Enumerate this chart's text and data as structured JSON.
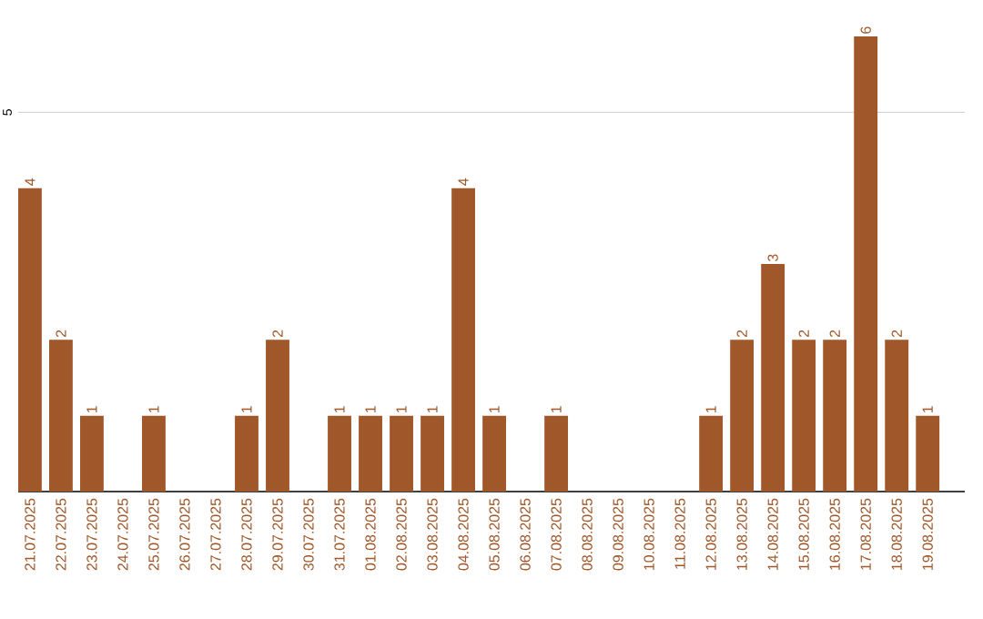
{
  "chart_data": {
    "type": "bar",
    "color": "#a0572a",
    "categories": [
      "21.07.2025",
      "22.07.2025",
      "23.07.2025",
      "24.07.2025",
      "25.07.2025",
      "26.07.2025",
      "27.07.2025",
      "28.07.2025",
      "29.07.2025",
      "30.07.2025",
      "31.07.2025",
      "01.08.2025",
      "02.08.2025",
      "03.08.2025",
      "04.08.2025",
      "05.08.2025",
      "06.08.2025",
      "07.08.2025",
      "08.08.2025",
      "09.08.2025",
      "10.08.2025",
      "11.08.2025",
      "12.08.2025",
      "13.08.2025",
      "14.08.2025",
      "15.08.2025",
      "16.08.2025",
      "17.08.2025",
      "18.08.2025",
      "19.08.2025"
    ],
    "values": [
      4,
      2,
      1,
      0,
      1,
      0,
      0,
      1,
      2,
      0,
      1,
      1,
      1,
      1,
      4,
      1,
      0,
      1,
      0,
      0,
      0,
      0,
      1,
      2,
      3,
      2,
      2,
      6,
      2,
      1
    ],
    "value_labels": [
      "4",
      "2",
      "1",
      null,
      "1",
      null,
      null,
      "1",
      "2",
      null,
      "1",
      "1",
      "1",
      "1",
      "4",
      "1",
      null,
      "1",
      null,
      null,
      null,
      null,
      "1",
      "2",
      "3",
      "2",
      "2",
      "6",
      "2",
      "1"
    ],
    "ylim": [
      0,
      6
    ],
    "yticks": [
      5
    ],
    "grid": "y"
  }
}
